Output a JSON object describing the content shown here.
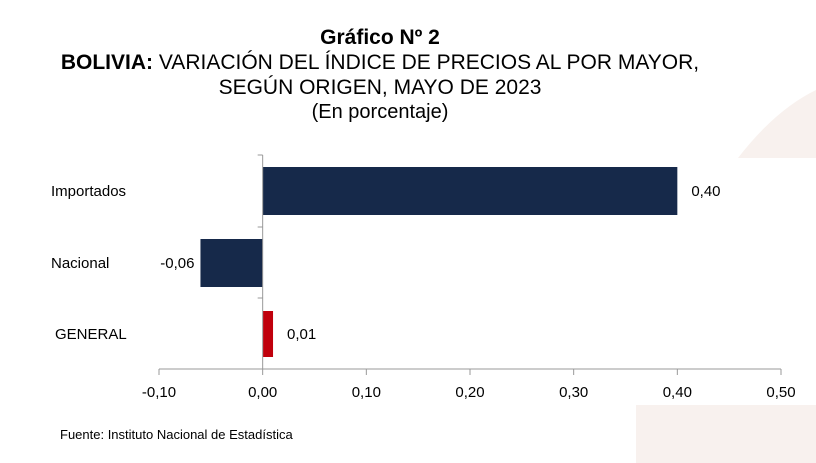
{
  "heading": {
    "number": "Gráfico Nº 2",
    "country": "BOLIVIA:",
    "title_line1": "VARIACIÓN DEL ÍNDICE DE PRECIOS AL POR MAYOR,",
    "title_line2": "SEGÚN ORIGEN, MAYO DE 2023",
    "unit": "(En porcentaje)"
  },
  "source": "Fuente: Instituto Nacional de Estadística",
  "chart_data": {
    "type": "bar",
    "orientation": "horizontal",
    "categories": [
      "Importados",
      "Nacional",
      "GENERAL"
    ],
    "values": [
      0.4,
      -0.06,
      0.01
    ],
    "value_labels": [
      "0,40",
      "-0,06",
      "0,01"
    ],
    "colors": [
      "#16294a",
      "#16294a",
      "#c0000c"
    ],
    "xlim": [
      -0.1,
      0.5
    ],
    "xticks": [
      -0.1,
      0.0,
      0.1,
      0.2,
      0.3,
      0.4,
      0.5
    ],
    "xtick_labels": [
      "-0,10",
      "0,00",
      "0,10",
      "0,20",
      "0,30",
      "0,40",
      "0,50"
    ],
    "grid": false,
    "legend": "none"
  }
}
